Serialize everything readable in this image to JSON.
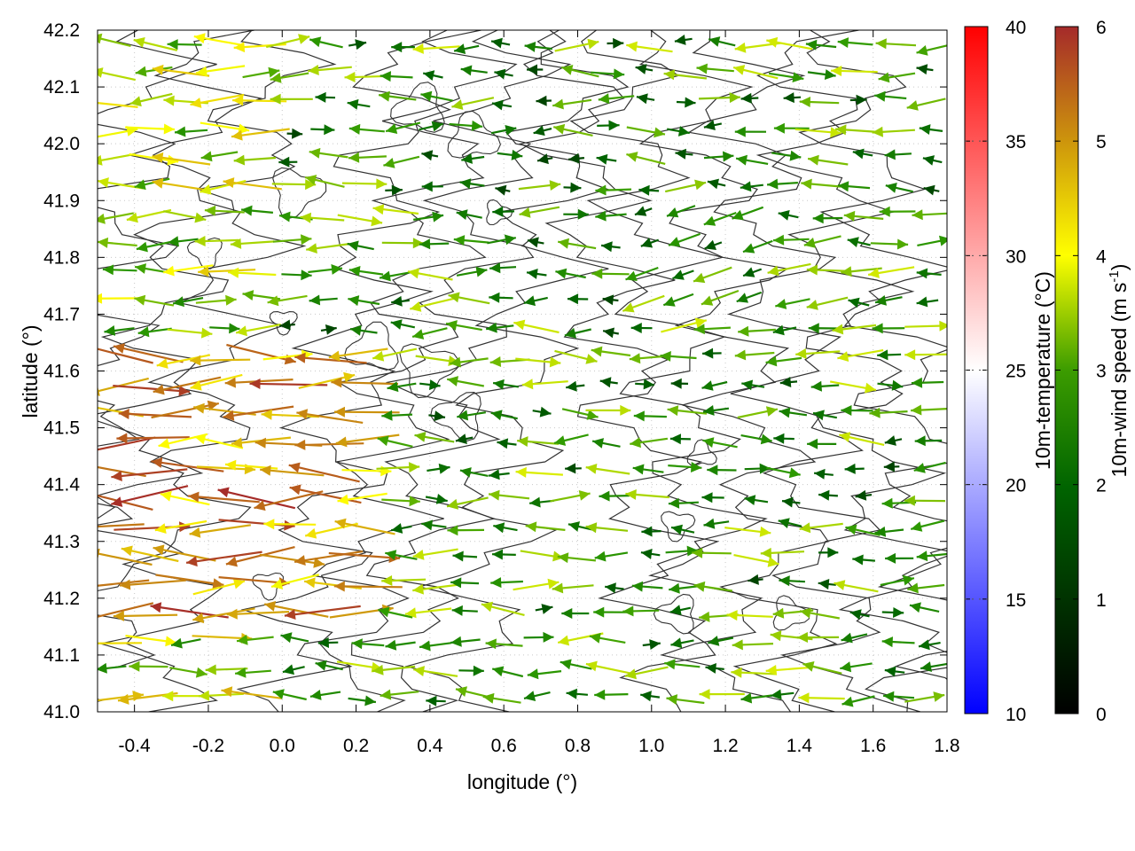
{
  "chart_data": {
    "type": "vector-field",
    "xlabel": "longitude (°)",
    "ylabel": "latitude (°)",
    "xlim": [
      -0.5,
      1.8
    ],
    "ylim": [
      41.0,
      42.2
    ],
    "x_ticks": [
      "-0.4",
      "-0.2",
      "0.0",
      "0.2",
      "0.4",
      "0.6",
      "0.8",
      "1.0",
      "1.2",
      "1.4",
      "1.6",
      "1.8"
    ],
    "y_ticks": [
      "41.0",
      "41.1",
      "41.2",
      "41.3",
      "41.4",
      "41.5",
      "41.6",
      "41.7",
      "41.8",
      "41.9",
      "42.0",
      "42.1",
      "42.2"
    ],
    "grid": true,
    "vector_color_scale": {
      "label_main": "10m-wind speed (m s",
      "label_sup": "-1",
      "label_end": ")",
      "range": [
        0,
        6
      ],
      "ticks": [
        "0",
        "1",
        "2",
        "3",
        "4",
        "5",
        "6"
      ],
      "colors": [
        "#000000",
        "#006400",
        "#2e9a00",
        "#ffff00",
        "#cd950c",
        "#a52a2a"
      ]
    },
    "temperature_scale": {
      "label": "10m-temperature (°C)",
      "range": [
        10,
        40
      ],
      "ticks": [
        "10",
        "15",
        "20",
        "25",
        "30",
        "35",
        "40"
      ],
      "colors": [
        "#0000ff",
        "#ffffff",
        "#ff0000"
      ]
    },
    "contour_color": "#333333"
  }
}
